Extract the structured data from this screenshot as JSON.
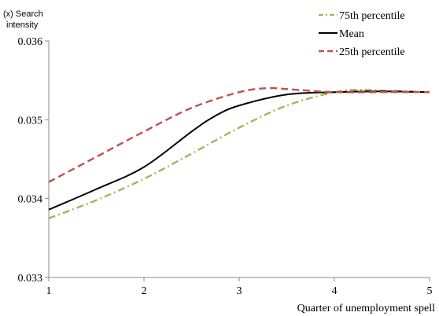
{
  "chart_data": {
    "type": "line",
    "ylabel": "(x) Search intensity",
    "ylabel_lines": [
      "(x) Search",
      "intensity"
    ],
    "xlabel": "Quarter of unemployment spell",
    "xlim": [
      1,
      5
    ],
    "ylim": [
      0.033,
      0.036
    ],
    "x_ticks": [
      1,
      2,
      3,
      4,
      5
    ],
    "y_ticks": [
      0.033,
      0.034,
      0.035,
      0.036
    ],
    "y_tick_labels": [
      "0.033",
      "0.034",
      "0.035",
      "0.036"
    ],
    "x_tick_labels": [
      "1",
      "2",
      "3",
      "4",
      "5"
    ],
    "grid": false,
    "legend_position": "top-right",
    "series": [
      {
        "name": "75th percentile",
        "color": "#9bbb59",
        "dash": "dash-dot",
        "x": [
          1,
          1.5,
          2,
          2.5,
          3,
          3.5,
          4,
          4.25,
          4.5,
          5
        ],
        "y": [
          0.03375,
          0.03398,
          0.03425,
          0.03457,
          0.0349,
          0.03518,
          0.03535,
          0.03538,
          0.03537,
          0.03535
        ]
      },
      {
        "name": "Mean",
        "color": "#000000",
        "dash": "solid",
        "x": [
          1,
          1.5,
          2,
          2.5,
          2.75,
          3,
          3.5,
          4,
          4.5,
          5
        ],
        "y": [
          0.03386,
          0.03412,
          0.0344,
          0.03485,
          0.03505,
          0.03518,
          0.03532,
          0.03535,
          0.03536,
          0.03535
        ]
      },
      {
        "name": "25th percentile",
        "color": "#c0504d",
        "dash": "dashed",
        "x": [
          1,
          1.5,
          2,
          2.5,
          3,
          3.3,
          3.6,
          4,
          4.5,
          5
        ],
        "y": [
          0.03421,
          0.03453,
          0.03485,
          0.03515,
          0.03535,
          0.0354,
          0.03538,
          0.03535,
          0.03535,
          0.03535
        ]
      }
    ]
  }
}
